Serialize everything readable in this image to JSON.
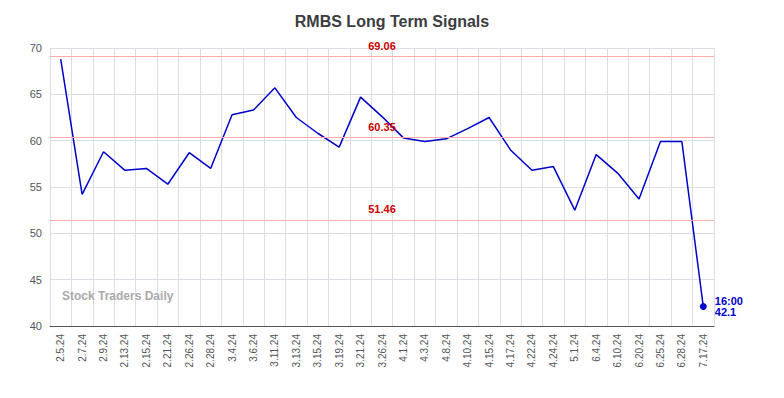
{
  "chart_data": {
    "type": "line",
    "title": "RMBS Long Term Signals",
    "categories": [
      "2.5.24",
      "2.7.24",
      "2.9.24",
      "2.13.24",
      "2.15.24",
      "2.21.24",
      "2.26.24",
      "2.28.24",
      "3.4.24",
      "3.6.24",
      "3.11.24",
      "3.13.24",
      "3.15.24",
      "3.19.24",
      "3.21.24",
      "3.26.24",
      "4.1.24",
      "4.3.24",
      "4.8.24",
      "4.10.24",
      "4.15.24",
      "4.17.24",
      "4.22.24",
      "4.24.24",
      "5.1.24",
      "6.4.24",
      "6.10.24",
      "6.20.24",
      "6.25.24",
      "6.28.24",
      "7.17.24"
    ],
    "values": [
      68.8,
      54.2,
      58.8,
      56.8,
      57.0,
      55.3,
      58.7,
      57.0,
      62.8,
      63.3,
      65.7,
      62.5,
      60.8,
      59.3,
      64.7,
      62.6,
      60.3,
      59.9,
      60.2,
      61.3,
      62.5,
      59.0,
      56.8,
      57.2,
      52.5,
      58.5,
      56.5,
      53.7,
      59.9,
      59.9,
      42.1
    ],
    "color": "#0000cc",
    "ylim": [
      40,
      70
    ],
    "yticks": [
      40,
      45,
      50,
      55,
      60,
      65,
      70
    ],
    "grid": true,
    "hlines": [
      {
        "value": 69.06,
        "label": "69.06",
        "color": "#cc0000",
        "line_color": "#ffaaaa"
      },
      {
        "value": 60.35,
        "label": "60.35",
        "color": "#cc0000",
        "line_color": "#ffaaaa"
      },
      {
        "value": 51.46,
        "label": "51.46",
        "color": "#cc0000",
        "line_color": "#ffaaaa"
      }
    ],
    "last_point_labels": [
      "16:00",
      "42.1"
    ],
    "watermark": {
      "text": "Stock Traders Daily",
      "color": "#aaaaaa"
    }
  }
}
